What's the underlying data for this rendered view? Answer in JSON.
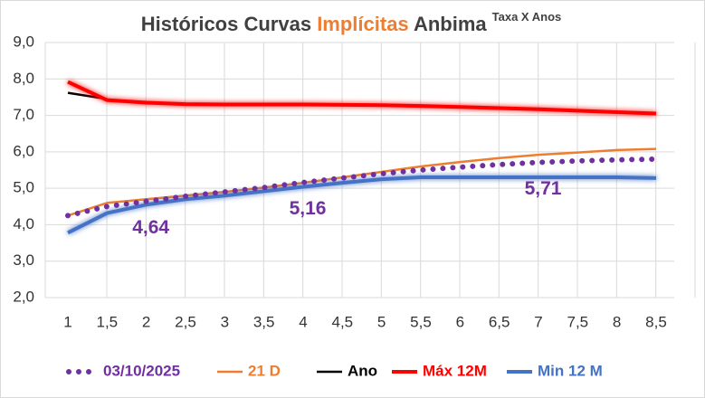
{
  "chart_data": {
    "type": "line",
    "title": [
      "Históricos Curvas",
      "Implícitas",
      "Anbima"
    ],
    "subtitle": "Taxa X Anos",
    "x": [
      1,
      1.5,
      2,
      2.5,
      3,
      3.5,
      4,
      4.5,
      5,
      5.5,
      6,
      6.5,
      7,
      7.5,
      8,
      8.5
    ],
    "xlim": [
      1,
      8.5
    ],
    "xticks": [
      1,
      {
        "value": 1.5,
        "label": "1,5"
      },
      2,
      {
        "value": 2.5,
        "label": "2,5"
      },
      3,
      {
        "value": 3.5,
        "label": "3,5"
      },
      4,
      {
        "value": 4.5,
        "label": "4,5"
      },
      5,
      {
        "value": 5.5,
        "label": "5,5"
      },
      6,
      {
        "value": 6.5,
        "label": "6,5"
      },
      7,
      {
        "value": 7.5,
        "label": "7,5"
      },
      8,
      {
        "value": 8.5,
        "label": "8,5"
      }
    ],
    "ylim": [
      2,
      9
    ],
    "yticks": [
      {
        "value": 2,
        "label": "2,0"
      },
      {
        "value": 3,
        "label": "3,0"
      },
      {
        "value": 4,
        "label": "4,0"
      },
      {
        "value": 5,
        "label": "5,0"
      },
      {
        "value": 6,
        "label": "6,0"
      },
      {
        "value": 7,
        "label": "7,0"
      },
      {
        "value": 8,
        "label": "8,0"
      },
      {
        "value": 9,
        "label": "9,0"
      }
    ],
    "grid": true,
    "legend": "bottom",
    "series": [
      {
        "name": "03/10/2025",
        "color": "#7030a0",
        "style": "dotted",
        "values": [
          4.25,
          4.5,
          4.64,
          4.78,
          4.9,
          5.02,
          5.16,
          5.28,
          5.4,
          5.5,
          5.58,
          5.65,
          5.71,
          5.75,
          5.78,
          5.8
        ],
        "value_labels": [
          null,
          null,
          "4,64",
          null,
          null,
          null,
          "5,16",
          null,
          null,
          null,
          null,
          null,
          "5,71",
          null,
          null,
          null
        ]
      },
      {
        "name": "21 D",
        "color": "#ed7d31",
        "values": [
          4.25,
          4.6,
          4.7,
          4.8,
          4.9,
          5.02,
          5.15,
          5.3,
          5.45,
          5.6,
          5.72,
          5.83,
          5.92,
          5.98,
          6.05,
          6.08
        ]
      },
      {
        "name": "Ano",
        "color": "#000000",
        "values": [
          7.62,
          7.45,
          null,
          null,
          null,
          null,
          null,
          null,
          null,
          null,
          null,
          null,
          null,
          null,
          null,
          null
        ]
      },
      {
        "name": "Máx 12M",
        "color": "#ff0000",
        "values": [
          7.92,
          7.42,
          7.35,
          7.31,
          7.3,
          7.3,
          7.3,
          7.29,
          7.28,
          7.26,
          7.23,
          7.2,
          7.17,
          7.13,
          7.09,
          7.05
        ]
      },
      {
        "name": "Min 12 M",
        "color": "#4472c4",
        "values": [
          3.78,
          4.32,
          4.55,
          4.7,
          4.8,
          4.92,
          5.04,
          5.15,
          5.25,
          5.3,
          5.3,
          5.3,
          5.3,
          5.3,
          5.3,
          5.28
        ]
      }
    ]
  }
}
